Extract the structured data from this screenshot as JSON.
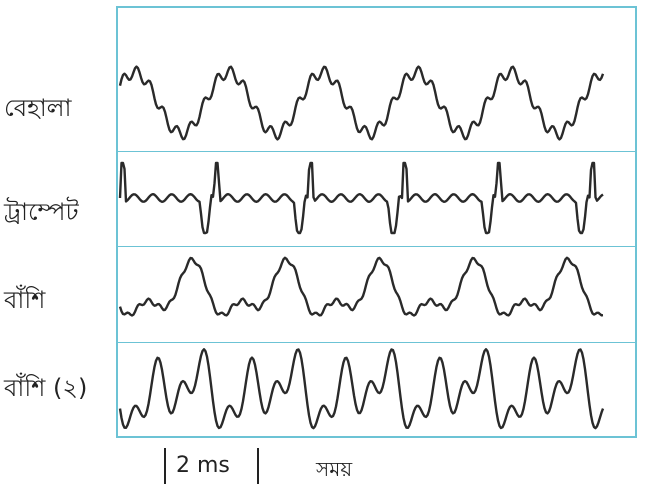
{
  "rows": [
    {
      "label": "বেহালা",
      "wave": "violin"
    },
    {
      "label": "ট্রাম্পেট",
      "wave": "trumpet"
    },
    {
      "label": "বাঁশি",
      "wave": "flute"
    },
    {
      "label": "বাঁশি (২)",
      "wave": "flute2"
    }
  ],
  "scale_bar": {
    "label": "2 ms"
  },
  "x_axis": {
    "label": "সময়"
  },
  "colors": {
    "frame": "#6cc3d5",
    "trace": "#2a2a2a"
  }
}
